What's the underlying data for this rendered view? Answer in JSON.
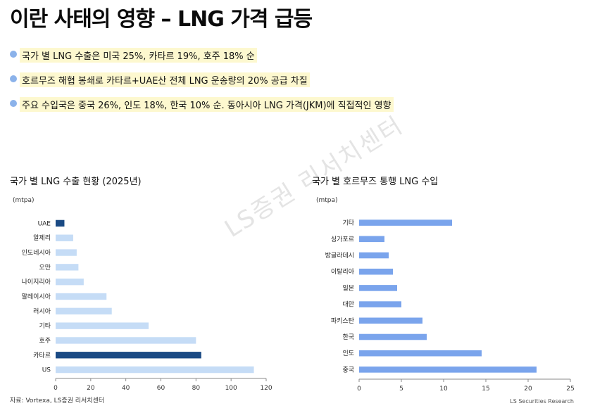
{
  "title": "이란 사태의 영향 – LNG 가격 급등",
  "bullets": [
    "국가 별 LNG 수출은 미국 25%, 카타르 19%, 호주 18% 순",
    "호르무즈 해협 봉쇄로 카타르+UAE산 전체 LNG 운송량의 20% 공급 차질",
    "주요 수입국은 중국 26%, 인도 18%, 한국 10% 순. 동아시아 LNG 가격(JKM)에 직접적인 영향"
  ],
  "colors": {
    "dark": "#1a4a84",
    "light": "#c5dcf6",
    "blue": "#7aa4ec",
    "bullet": "#8bb2ea",
    "highlight": "#fdf8cf"
  },
  "watermark": "LS증권 리서치센터",
  "source": "자료: Vortexa, LS증권 리서치센터",
  "footer_brand": "LS Securities Research",
  "chart_data": [
    {
      "type": "bar",
      "orientation": "horizontal",
      "title": "국가 별 LNG 수출 현황 (2025년)",
      "unit": "(mtpa)",
      "categories": [
        "UAE",
        "알제리",
        "인도네시아",
        "오만",
        "나이지리아",
        "말레이시아",
        "러시아",
        "기타",
        "호주",
        "카타르",
        "US"
      ],
      "values": [
        5,
        10,
        12,
        13,
        16,
        29,
        32,
        53,
        80,
        83,
        113
      ],
      "highlighted": [
        "UAE",
        "카타르"
      ],
      "xlim": [
        0,
        120
      ],
      "xticks": [
        0,
        20,
        40,
        60,
        80,
        100,
        120
      ],
      "grid": false
    },
    {
      "type": "bar",
      "orientation": "horizontal",
      "title": "국가 별 호르무즈 통행 LNG 수입",
      "unit": "(mtpa)",
      "categories": [
        "기타",
        "싱가포르",
        "방글라데시",
        "이탈리아",
        "일본",
        "대만",
        "파키스탄",
        "한국",
        "인도",
        "중국"
      ],
      "values": [
        11,
        3,
        3.5,
        4,
        4.5,
        5,
        7.5,
        8,
        14.5,
        21
      ],
      "xlim": [
        0,
        25
      ],
      "xticks": [
        0,
        5,
        10,
        15,
        20,
        25
      ],
      "grid": false
    }
  ]
}
